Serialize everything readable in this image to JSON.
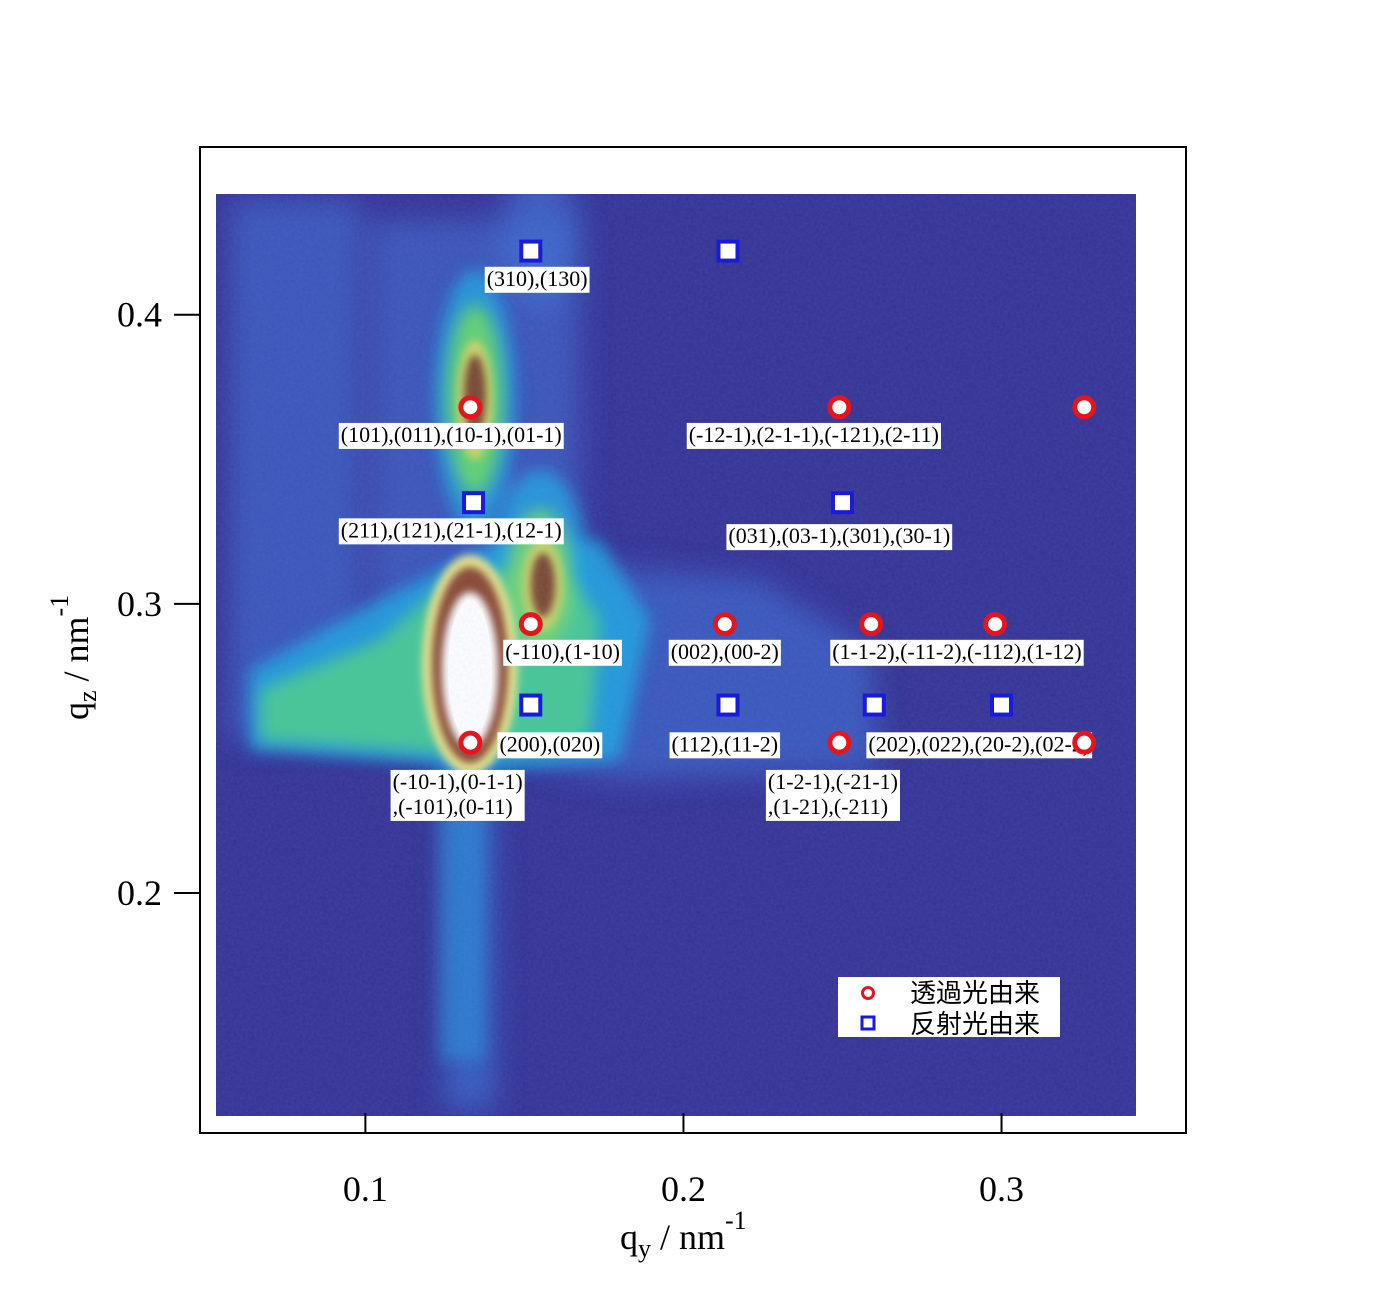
{
  "chart_data": {
    "type": "scatter",
    "title": "",
    "xlabel": {
      "base": "q",
      "sub": "y",
      "unit": " / nm",
      "sup": "-1"
    },
    "ylabel": {
      "base": "q",
      "sub": "z",
      "unit": " / nm",
      "sup": "-1"
    },
    "xlim": [
      0.048,
      0.358
    ],
    "ylim": [
      0.117,
      0.458
    ],
    "x_ticks": [
      {
        "value": 0.1,
        "label": "0.1"
      },
      {
        "value": 0.2,
        "label": "0.2"
      },
      {
        "value": 0.3,
        "label": "0.3"
      }
    ],
    "y_ticks": [
      {
        "value": 0.2,
        "label": "0.2"
      },
      {
        "value": 0.3,
        "label": "0.3"
      },
      {
        "value": 0.4,
        "label": "0.4"
      }
    ],
    "grid": false,
    "legend_position": "bottom-right",
    "colors": {
      "transmitted": "#e8141b",
      "reflected": "#1a1adc",
      "background_map": "#353496"
    },
    "series": [
      {
        "name": "透過光由来",
        "marker": "open-circle",
        "points": [
          {
            "x": 0.133,
            "y": 0.368
          },
          {
            "x": 0.152,
            "y": 0.293
          },
          {
            "x": 0.213,
            "y": 0.293
          },
          {
            "x": 0.249,
            "y": 0.368
          },
          {
            "x": 0.259,
            "y": 0.293
          },
          {
            "x": 0.298,
            "y": 0.293
          },
          {
            "x": 0.326,
            "y": 0.368
          },
          {
            "x": 0.133,
            "y": 0.252
          },
          {
            "x": 0.249,
            "y": 0.252
          },
          {
            "x": 0.326,
            "y": 0.252
          }
        ]
      },
      {
        "name": "反射光由来",
        "marker": "open-square",
        "points": [
          {
            "x": 0.152,
            "y": 0.422
          },
          {
            "x": 0.214,
            "y": 0.422
          },
          {
            "x": 0.134,
            "y": 0.335
          },
          {
            "x": 0.25,
            "y": 0.335
          },
          {
            "x": 0.152,
            "y": 0.265
          },
          {
            "x": 0.214,
            "y": 0.265
          },
          {
            "x": 0.26,
            "y": 0.265
          },
          {
            "x": 0.3,
            "y": 0.265
          }
        ]
      }
    ],
    "annotations": [
      {
        "lines": [
          "(310),(130)"
        ],
        "x": 0.154,
        "y": 0.41
      },
      {
        "lines": [
          "(101),(011),(10-1),(01-1)"
        ],
        "x": 0.127,
        "y": 0.356
      },
      {
        "lines": [
          "(-12-1),(2-1-1),(-121),(2-11)"
        ],
        "x": 0.241,
        "y": 0.356
      },
      {
        "lines": [
          "(211),(121),(21-1),(12-1)"
        ],
        "x": 0.127,
        "y": 0.323
      },
      {
        "lines": [
          "(031),(03-1),(301),(30-1)"
        ],
        "x": 0.249,
        "y": 0.321
      },
      {
        "lines": [
          "(-110),(1-10)"
        ],
        "x": 0.162,
        "y": 0.281
      },
      {
        "lines": [
          "(002),(00-2)"
        ],
        "x": 0.213,
        "y": 0.281
      },
      {
        "lines": [
          "(1-1-2),(-11-2),(-112),(1-12)"
        ],
        "x": 0.286,
        "y": 0.281
      },
      {
        "lines": [
          "(200),(020)"
        ],
        "x": 0.158,
        "y": 0.249
      },
      {
        "lines": [
          "(112),(11-2)"
        ],
        "x": 0.213,
        "y": 0.249
      },
      {
        "lines": [
          "(202),(022),(20-2),(02-2)"
        ],
        "x": 0.293,
        "y": 0.249
      },
      {
        "lines": [
          "(-10-1),(0-1-1)",
          ",(-101),(0-11)"
        ],
        "x": 0.129,
        "y": 0.236
      },
      {
        "lines": [
          "(1-2-1),(-21-1)",
          ",(1-21),(-211)"
        ],
        "x": 0.247,
        "y": 0.236
      }
    ]
  }
}
